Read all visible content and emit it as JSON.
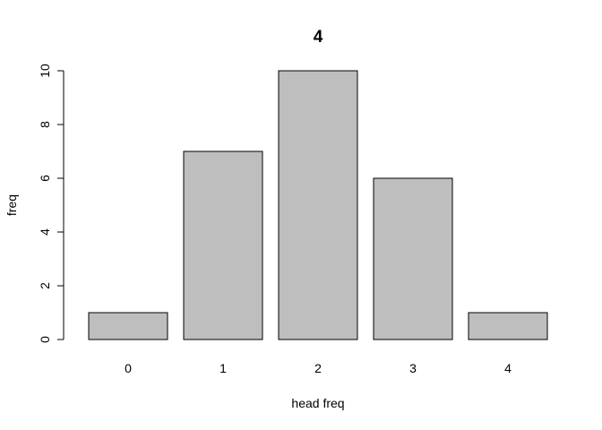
{
  "chart_data": {
    "type": "bar",
    "title": "4",
    "xlabel": "head freq",
    "ylabel": "freq",
    "categories": [
      "0",
      "1",
      "2",
      "3",
      "4"
    ],
    "values": [
      1,
      7,
      10,
      6,
      1
    ],
    "ylim": [
      0,
      10
    ],
    "yticks": [
      0,
      2,
      4,
      6,
      8,
      10
    ],
    "grid": false,
    "bar_fill": "#bebebe",
    "bar_stroke": "#000000"
  }
}
